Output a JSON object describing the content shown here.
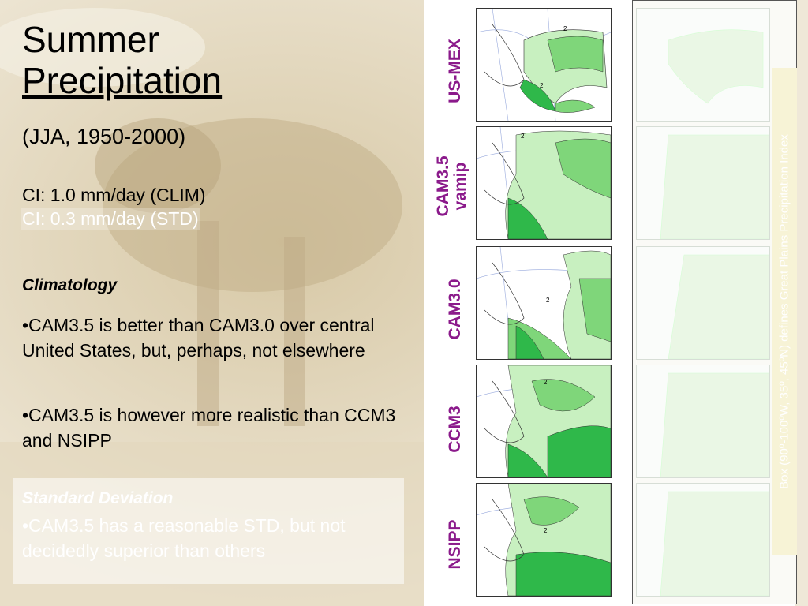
{
  "title_line1": "Summer",
  "title_line2": "Precipitation",
  "subtitle": "(JJA, 1950-2000)",
  "ci_clim": "CI: 1.0 mm/day (CLIM)",
  "ci_std": "CI: 0.3 mm/day (STD)",
  "climatology_heading": "Climatology",
  "bullet1": "•CAM3.5 is better than CAM3.0 over central United States, but, perhaps, not elsewhere",
  "bullet2": "•CAM3.5 is however more realistic than CCM3 and NSIPP",
  "std_heading": "Standard Deviation",
  "std_bullet": "•CAM3.5 has a reasonable STD, but not decidedly superior than others",
  "panels": [
    {
      "label": "US-MEX"
    },
    {
      "label": "CAM3.5 vamip"
    },
    {
      "label": "CAM3.0"
    },
    {
      "label": "CCM3"
    },
    {
      "label": "NSIPP"
    }
  ],
  "side_note": "Box (90º-100ºW, 35º, 45ºN) defines Great Plains Precipitation Index",
  "colors": {
    "label": "#8b1a8b",
    "precip_light": "#c8f0c0",
    "precip_mid": "#7fd67a",
    "precip_dark": "#2fb84a"
  },
  "contour_labels": [
    "2",
    "2",
    "2",
    "2",
    "2"
  ]
}
